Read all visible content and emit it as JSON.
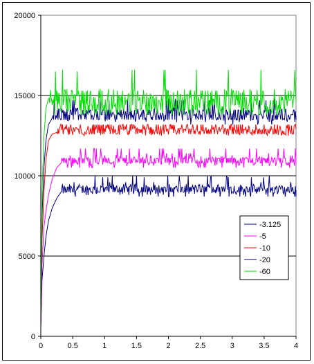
{
  "chart_data": {
    "type": "line",
    "title": "",
    "xlabel": "",
    "ylabel": "",
    "xlim": [
      0,
      4
    ],
    "ylim": [
      0,
      20000
    ],
    "x_ticks": [
      "0",
      "0.5",
      "1",
      "1.5",
      "2",
      "2.5",
      "3",
      "3.5",
      "4"
    ],
    "y_ticks": [
      "0",
      "5000",
      "10000",
      "15000",
      "20000"
    ],
    "grid": "horizontal",
    "legend_position": "right",
    "series": [
      {
        "name": "-3.125",
        "color": "#000080",
        "rise": [
          [
            0,
            500
          ],
          [
            0.02,
            3500
          ],
          [
            0.05,
            5000
          ],
          [
            0.08,
            6200
          ],
          [
            0.12,
            7200
          ],
          [
            0.18,
            8000
          ],
          [
            0.25,
            8600
          ],
          [
            0.32,
            9000
          ]
        ],
        "base": 9000,
        "amp": 700,
        "spike": 1000
      },
      {
        "name": "-5",
        "color": "#ff00ff",
        "rise": [
          [
            0,
            600
          ],
          [
            0.02,
            4500
          ],
          [
            0.05,
            6800
          ],
          [
            0.08,
            7800
          ],
          [
            0.12,
            8800
          ],
          [
            0.18,
            9800
          ],
          [
            0.25,
            10500
          ],
          [
            0.32,
            10800
          ]
        ],
        "base": 10800,
        "amp": 700,
        "spike": 900
      },
      {
        "name": "-10",
        "color": "#ff0000",
        "rise": [
          [
            0,
            700
          ],
          [
            0.02,
            6000
          ],
          [
            0.05,
            9000
          ],
          [
            0.08,
            11000
          ],
          [
            0.12,
            12200
          ],
          [
            0.18,
            12600
          ],
          [
            0.25,
            12700
          ]
        ],
        "base": 12700,
        "amp": 700,
        "spike": 500
      },
      {
        "name": "-20",
        "color": "#000080",
        "rise": [
          [
            0,
            800
          ],
          [
            0.02,
            7500
          ],
          [
            0.05,
            10500
          ],
          [
            0.08,
            12200
          ],
          [
            0.12,
            13200
          ],
          [
            0.18,
            13600
          ]
        ],
        "base": 13600,
        "amp": 900,
        "spike": 1200
      },
      {
        "name": "-60",
        "color": "#00dd00",
        "rise": [
          [
            0,
            900
          ],
          [
            0.02,
            9000
          ],
          [
            0.05,
            12500
          ],
          [
            0.08,
            14200
          ],
          [
            0.12,
            14800
          ]
        ],
        "base": 14300,
        "amp": 1600,
        "spike": 2300
      }
    ]
  }
}
